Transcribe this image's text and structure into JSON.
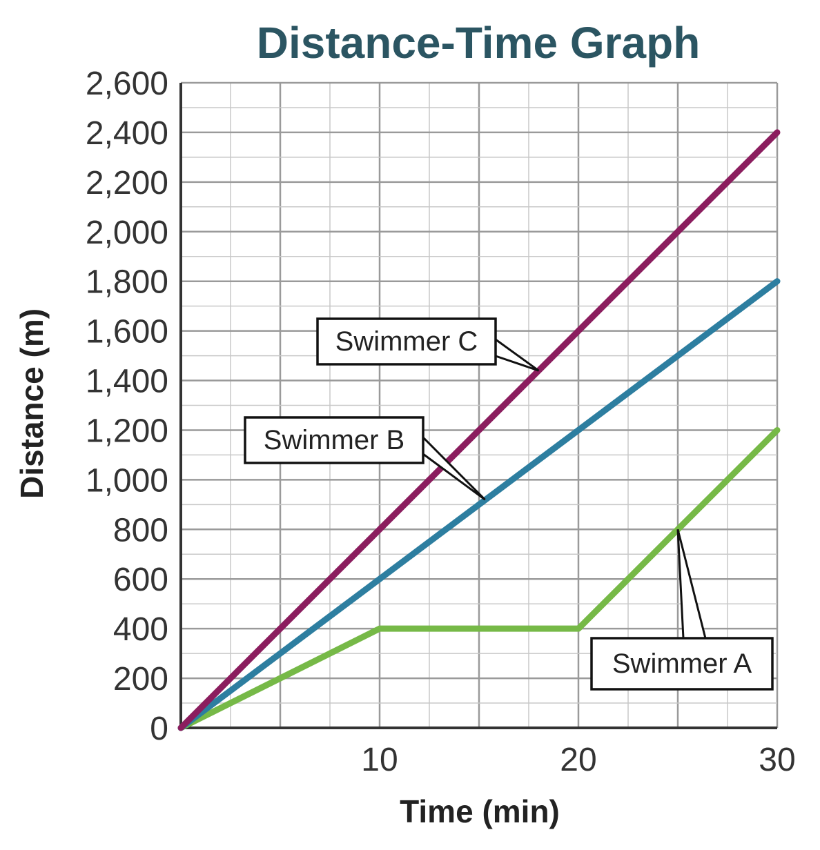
{
  "chart_data": {
    "type": "line",
    "title": "Distance-Time Graph",
    "xlabel": "Time (min)",
    "ylabel": "Distance (m)",
    "xlim": [
      0,
      30
    ],
    "ylim": [
      0,
      2600
    ],
    "x_ticks": [
      10,
      20,
      30
    ],
    "y_ticks": [
      0,
      200,
      400,
      600,
      800,
      1000,
      1200,
      1400,
      1600,
      1800,
      2000,
      2200,
      2400,
      2600
    ],
    "x_tick_labels": [
      "10",
      "20",
      "30"
    ],
    "y_tick_labels": [
      "0",
      "200",
      "400",
      "600",
      "800",
      "1,000",
      "1,200",
      "1,400",
      "1,600",
      "1,800",
      "2,000",
      "2,200",
      "2,400",
      "2,600"
    ],
    "grid": true,
    "legend": "callout labels on lines",
    "series": [
      {
        "name": "Swimmer A",
        "color": "#76b947",
        "points": [
          [
            0,
            0
          ],
          [
            10,
            400
          ],
          [
            20,
            400
          ],
          [
            30,
            1200
          ]
        ]
      },
      {
        "name": "Swimmer B",
        "color": "#2d7ea0",
        "points": [
          [
            0,
            0
          ],
          [
            30,
            1800
          ]
        ]
      },
      {
        "name": "Swimmer C",
        "color": "#8b1d5e",
        "points": [
          [
            0,
            0
          ],
          [
            30,
            2400
          ]
        ]
      }
    ],
    "annotations": [
      {
        "text": "Swimmer C",
        "series": "Swimmer C",
        "points_to": [
          18,
          1440
        ]
      },
      {
        "text": "Swimmer B",
        "series": "Swimmer B",
        "points_to": [
          15.3,
          920
        ]
      },
      {
        "text": "Swimmer A",
        "series": "Swimmer A",
        "points_to": [
          25,
          800
        ]
      }
    ]
  }
}
